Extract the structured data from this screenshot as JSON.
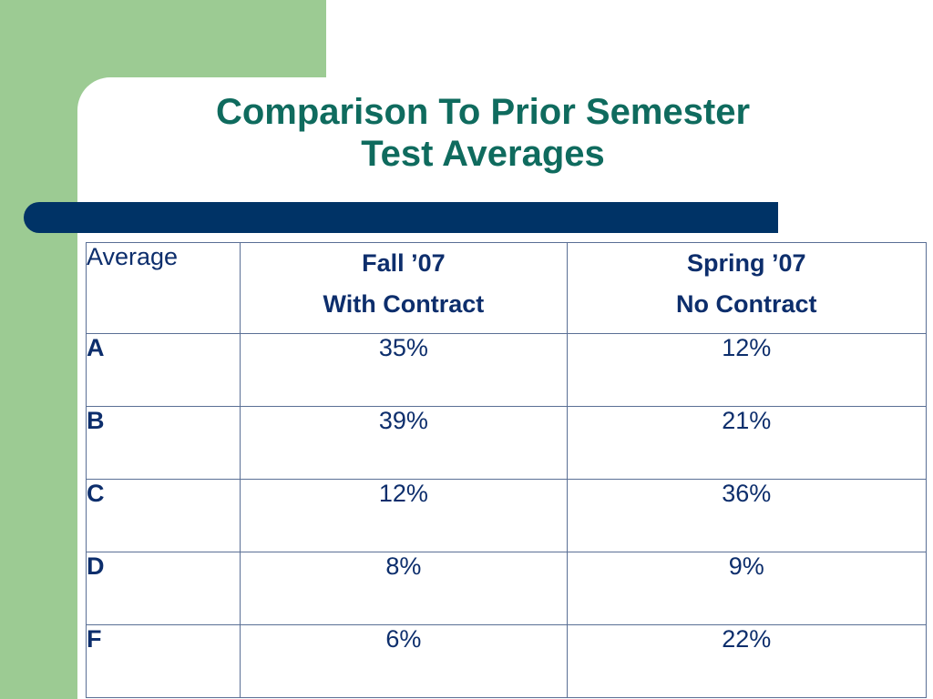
{
  "slide": {
    "title_line1": "Comparison To Prior Semester",
    "title_line2": "Test Averages"
  },
  "colors": {
    "green_band": "#9ccb93",
    "title": "#0f6b5e",
    "bar": "#003366",
    "table_text": "#0d2e6c"
  },
  "table": {
    "corner_header": "Average",
    "columns": [
      {
        "line1": "Fall ’07",
        "line2": "With Contract"
      },
      {
        "line1": "Spring ’07",
        "line2": "No Contract"
      }
    ],
    "rows": [
      {
        "grade": "A",
        "fall": "35%",
        "spring": "12%"
      },
      {
        "grade": "B",
        "fall": "39%",
        "spring": "21%"
      },
      {
        "grade": "C",
        "fall": "12%",
        "spring": "36%"
      },
      {
        "grade": "D",
        "fall": "8%",
        "spring": "9%"
      },
      {
        "grade": "F",
        "fall": "6%",
        "spring": "22%"
      }
    ]
  }
}
